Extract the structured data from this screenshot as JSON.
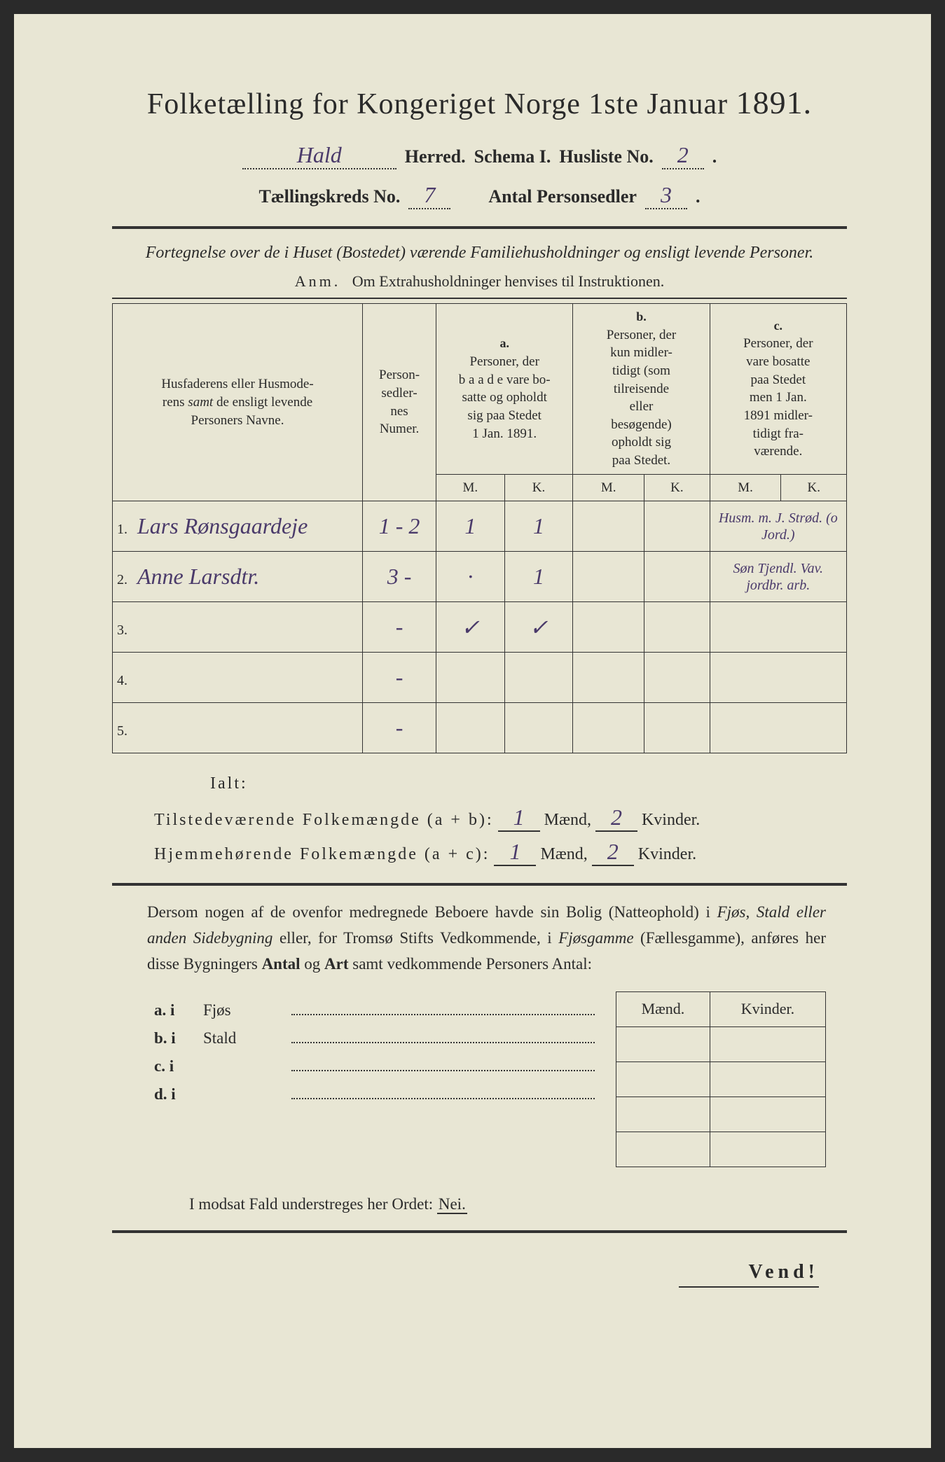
{
  "colors": {
    "paper": "#e8e6d4",
    "ink": "#2a2a2a",
    "handwriting": "#4a3a6a"
  },
  "title_prefix": "Folketælling for Kongeriget Norge 1ste Januar",
  "year": "1891.",
  "header": {
    "herred_value": "Hald",
    "herred_label": "Herred.",
    "schema_label": "Schema I.",
    "husliste_label": "Husliste No.",
    "husliste_value": "2",
    "kreds_label": "Tællingskreds No.",
    "kreds_value": "7",
    "personsedler_label": "Antal Personsedler",
    "personsedler_value": "3"
  },
  "subtitle": "Fortegnelse over de i Huset (Bostedet) værende Familiehusholdninger og ensligt levende Personer.",
  "anm_label": "Anm.",
  "anm_text": "Om Extrahusholdninger henvises til Instruktionen.",
  "columns": {
    "name": "Husfaderens eller Husmoderens samt de ensligt levende Personers Navne.",
    "numer": "Personsedlernes Numer.",
    "a_label": "a.",
    "a_text": "Personer, der baade vare bosatte og opholdt sig paa Stedet 1 Jan. 1891.",
    "b_label": "b.",
    "b_text": "Personer, der kun midlertidigt (som tilreisende eller besøgende) opholdt sig paa Stedet.",
    "c_label": "c.",
    "c_text": "Personer, der vare bosatte paa Stedet men 1 Jan. 1891 midlertidigt fraværende.",
    "M": "M.",
    "K": "K."
  },
  "rows": [
    {
      "n": "1.",
      "name": "Lars Rønsgaardeje",
      "numer": "1 - 2",
      "aM": "1",
      "aK": "1",
      "bM": "",
      "bK": "",
      "cM": "",
      "cK": "",
      "note": "Husm. m. J. Strød. (o Jord.)"
    },
    {
      "n": "2.",
      "name": "Anne Larsdtr.",
      "numer": "3 -",
      "aM": "·",
      "aK": "1",
      "bM": "",
      "bK": "",
      "cM": "",
      "cK": "",
      "note": "Søn Tjendl. Vav. jordbr. arb."
    },
    {
      "n": "3.",
      "name": "",
      "numer": "-",
      "aM": "✓",
      "aK": "✓",
      "bM": "",
      "bK": "",
      "cM": "",
      "cK": "",
      "note": ""
    },
    {
      "n": "4.",
      "name": "",
      "numer": "-",
      "aM": "",
      "aK": "",
      "bM": "",
      "bK": "",
      "cM": "",
      "cK": "",
      "note": ""
    },
    {
      "n": "5.",
      "name": "",
      "numer": "-",
      "aM": "",
      "aK": "",
      "bM": "",
      "bK": "",
      "cM": "",
      "cK": "",
      "note": ""
    }
  ],
  "ialt": {
    "label": "Ialt:",
    "line1_label": "Tilstedeværende Folkemængde (a + b):",
    "line2_label": "Hjemmehørende Folkemængde (a + c):",
    "maend": "Mænd,",
    "kvinder": "Kvinder.",
    "v1_m": "1",
    "v1_k": "2",
    "v2_m": "1",
    "v2_k": "2"
  },
  "para": "Dersom nogen af de ovenfor medregnede Beboere havde sin Bolig (Natteophold) i Fjøs, Stald eller anden Sidebygning eller, for Tromsø Stifts Vedkommende, i Fjøsgamme (Fællesgamme), anføres her disse Bygningers Antal og Art samt vedkommende Personers Antal:",
  "outbuildings": {
    "maend": "Mænd.",
    "kvinder": "Kvinder.",
    "items": [
      {
        "label": "a.  i",
        "type": "Fjøs"
      },
      {
        "label": "b.  i",
        "type": "Stald"
      },
      {
        "label": "c.  i",
        "type": ""
      },
      {
        "label": "d.  i",
        "type": ""
      }
    ]
  },
  "modsat": "I modsat Fald understreges her Ordet:",
  "nei": "Nei.",
  "vend": "Vend!"
}
